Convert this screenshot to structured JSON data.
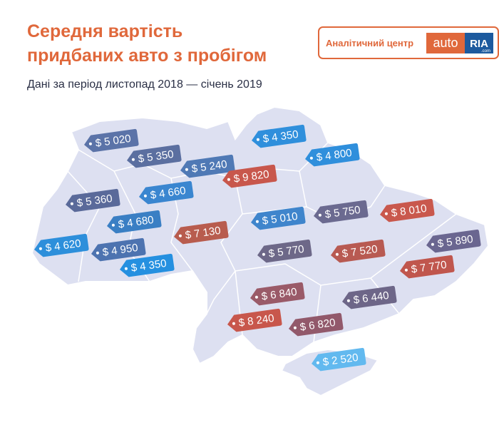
{
  "header": {
    "title": [
      "Середня вартість",
      "придбаних авто з пробігом"
    ],
    "subtitle": "Дані за період листопад 2018 — січень 2019"
  },
  "brand": {
    "label": "Аналітичний центр",
    "logo_auto": "auto",
    "logo_ria": "RIA",
    "logo_domain": ".com"
  },
  "tags": [
    {
      "label": "$ 5 020",
      "color": "#5b73a8"
    },
    {
      "label": "$ 5 350",
      "color": "#5b6fa0"
    },
    {
      "label": "$ 5 240",
      "color": "#4f79b5"
    },
    {
      "label": "$ 4 350",
      "color": "#2f8fdc"
    },
    {
      "label": "$ 4 800",
      "color": "#2f8fdc"
    },
    {
      "label": "$ 9 820",
      "color": "#c8574c"
    },
    {
      "label": "$ 5 360",
      "color": "#5a6a9a"
    },
    {
      "label": "$ 4 660",
      "color": "#3a86d0"
    },
    {
      "label": "$ 4 680",
      "color": "#3a7fc4"
    },
    {
      "label": "$ 7 130",
      "color": "#b85c4e"
    },
    {
      "label": "$ 5 010",
      "color": "#3f85cc"
    },
    {
      "label": "$ 5 750",
      "color": "#6b6a90"
    },
    {
      "label": "$ 8 010",
      "color": "#c9584d"
    },
    {
      "label": "$ 4 620",
      "color": "#2d8fdb"
    },
    {
      "label": "$ 4 950",
      "color": "#4d73b0"
    },
    {
      "label": "$ 4 350",
      "color": "#2590e0"
    },
    {
      "label": "$ 5 770",
      "color": "#6d6888"
    },
    {
      "label": "$ 7 520",
      "color": "#b85a52"
    },
    {
      "label": "$ 5 890",
      "color": "#6a6690"
    },
    {
      "label": "$ 7 770",
      "color": "#c0564d"
    },
    {
      "label": "$ 6 840",
      "color": "#9a5a68"
    },
    {
      "label": "$ 6 440",
      "color": "#6d6688"
    },
    {
      "label": "$ 8 240",
      "color": "#c8574c"
    },
    {
      "label": "$ 6 820",
      "color": "#92596b"
    },
    {
      "label": "$ 2 520",
      "color": "#62b9ef"
    }
  ]
}
